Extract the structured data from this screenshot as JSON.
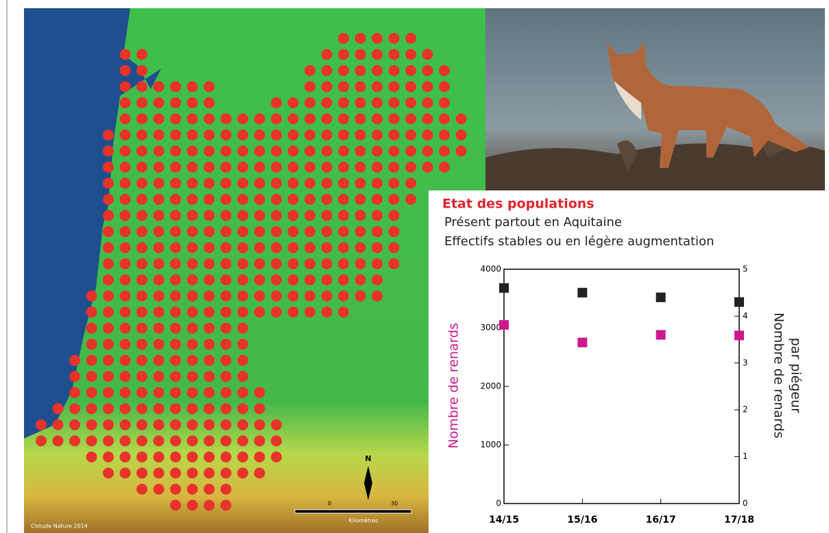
{
  "map": {
    "credit": "Cistude Nature 2014",
    "north": "N",
    "scale_labels": [
      "0",
      "30"
    ],
    "scale_unit": "Kilomètres"
  },
  "chart_data": {
    "type": "scatter",
    "title": "Etat des populations",
    "subtitle": [
      "Présent partout en Aquitaine",
      "Effectifs stables ou en légère augmentation"
    ],
    "ylabel": "Nombre de renards",
    "y2label": [
      "Nombre de renards",
      "par piégeur"
    ],
    "categories": [
      "14/15",
      "15/16",
      "16/17",
      "17/18"
    ],
    "series": [
      {
        "color": "#cc1a8f",
        "values": [
          3050,
          2750,
          2880,
          2870
        ]
      },
      {
        "color": "#222222",
        "values": [
          4.6,
          4.5,
          4.4,
          4.3
        ],
        "axis": "y2"
      }
    ],
    "ylim": [
      0,
      4000
    ],
    "yticks": [
      0,
      1000,
      2000,
      3000,
      4000
    ],
    "y2lim": [
      0,
      5
    ],
    "y2ticks": [
      0,
      1,
      2,
      3,
      4,
      5
    ]
  }
}
